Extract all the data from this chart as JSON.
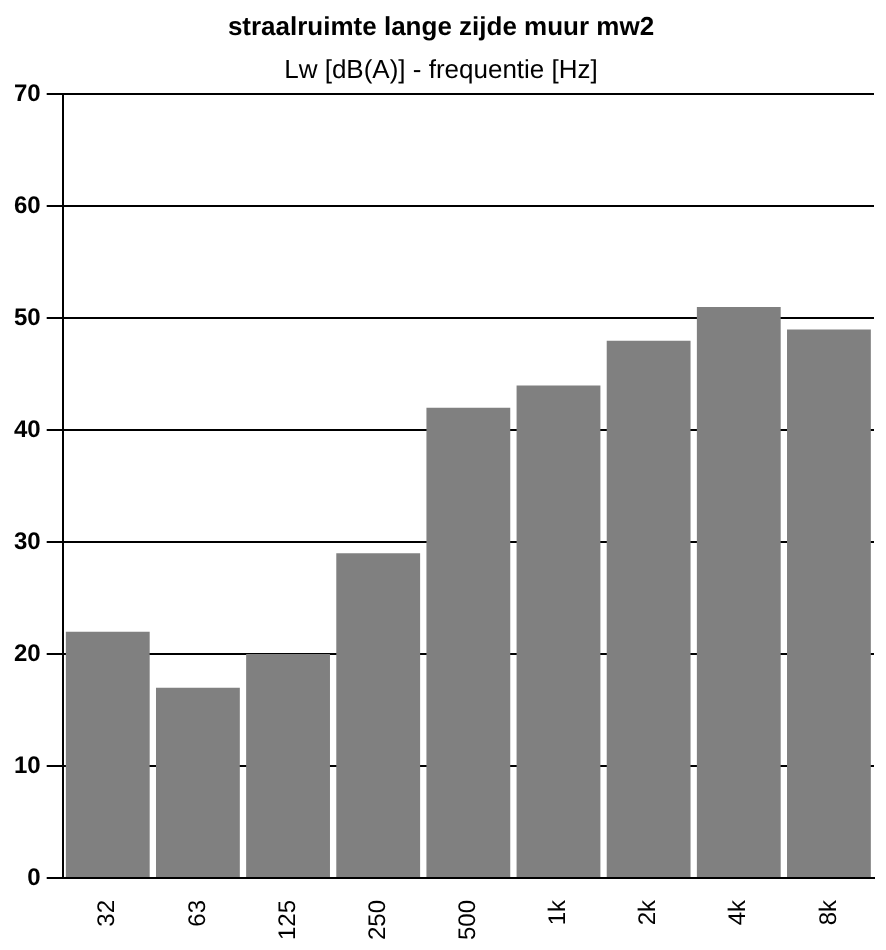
{
  "chart_data": {
    "type": "bar",
    "title": "straalruimte lange zijde muur mw2",
    "subtitle": "Lw [dB(A)] - frequentie [Hz]",
    "categories": [
      "32",
      "63",
      "125",
      "250",
      "500",
      "1k",
      "2k",
      "4k",
      "8k"
    ],
    "values": [
      22,
      17,
      20,
      29,
      42,
      44,
      48,
      51,
      49
    ],
    "color": "#808080",
    "ylim": [
      0,
      70
    ],
    "yticks": [
      0,
      10,
      20,
      30,
      40,
      50,
      60,
      70
    ],
    "grid": "y",
    "legend": false
  }
}
